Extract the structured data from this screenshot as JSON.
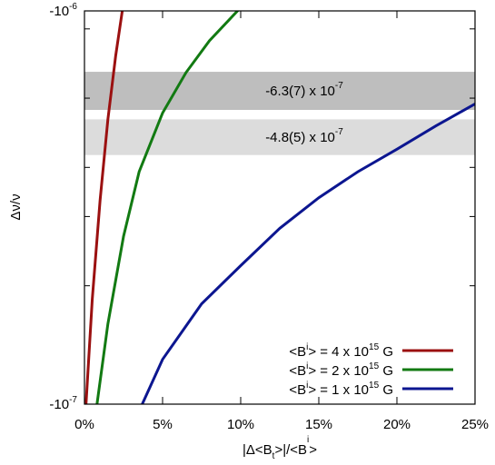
{
  "chart_data": {
    "type": "line",
    "xlabel_parts": [
      "|Δ<B",
      "t",
      ">|/<B",
      "i",
      ">"
    ],
    "ylabel": "Δν/ν",
    "xlim": [
      0,
      25
    ],
    "xticks": [
      {
        "value": 0,
        "label": "0%"
      },
      {
        "value": 5,
        "label": "5%"
      },
      {
        "value": 10,
        "label": "10%"
      },
      {
        "value": 15,
        "label": "15%"
      },
      {
        "value": 20,
        "label": "20%"
      },
      {
        "value": 25,
        "label": "25%"
      }
    ],
    "ylim": [
      -1e-07,
      -1e-06
    ],
    "log_scale_y": true,
    "yticks": [
      {
        "value": -1e-07,
        "label": "-10",
        "exponent": "-7"
      },
      {
        "value": -1e-06,
        "label": "-10",
        "exponent": "-6"
      }
    ],
    "yminor_ticks": [
      -9e-07,
      -6e-07,
      -4e-07,
      -3e-07,
      -2e-07
    ],
    "bands": [
      {
        "low": -7e-07,
        "high": -5.6e-07,
        "color": "#bebebe",
        "label_parts": [
          "-6.3(7) x 10",
          "-7"
        ]
      },
      {
        "low": -5.3e-07,
        "high": -4.3e-07,
        "color": "#dcdcdc",
        "label_parts": [
          "-4.8(5) x 10",
          "-7"
        ]
      }
    ],
    "legend": "bottom-right",
    "series": [
      {
        "name_parts": [
          "<B",
          "i",
          "> = 4 x 10",
          "15",
          " G"
        ],
        "color": "#9b1010",
        "x": [
          0.1,
          0.5,
          1.0,
          1.5,
          2.0,
          2.5
        ],
        "values": [
          -1e-07,
          -1.85e-07,
          -3.3e-07,
          -5.3e-07,
          -7.7e-07,
          -1.05e-06
        ]
      },
      {
        "name_parts": [
          "<B",
          "i",
          "> = 2 x 10",
          "15",
          " G"
        ],
        "color": "#127a12",
        "x": [
          0.8,
          1.5,
          2.5,
          3.5,
          5,
          6.5,
          8,
          10
        ],
        "values": [
          -1e-07,
          -1.6e-07,
          -2.67e-07,
          -3.9e-07,
          -5.5e-07,
          -6.97e-07,
          -8.4e-07,
          -1.02e-06
        ]
      },
      {
        "name_parts": [
          "<B",
          "i",
          "> = 1 x 10",
          "15",
          " G"
        ],
        "color": "#0c1690",
        "x": [
          3.7,
          5,
          7.5,
          10,
          12.5,
          15,
          17.5,
          20,
          22.5,
          25
        ],
        "values": [
          -1e-07,
          -1.3e-07,
          -1.8e-07,
          -2.25e-07,
          -2.8e-07,
          -3.35e-07,
          -3.9e-07,
          -4.45e-07,
          -5.1e-07,
          -5.8e-07
        ]
      }
    ]
  }
}
